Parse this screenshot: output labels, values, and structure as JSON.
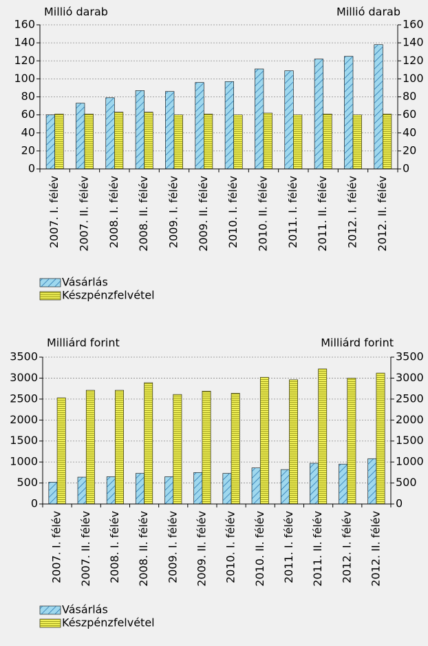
{
  "chart_data": [
    {
      "type": "bar",
      "ylabel": "Millió darab",
      "y2label": "Millió darab",
      "categories": [
        "2007. I. félév",
        "2007. II. félév",
        "2008. I. félév",
        "2008. II. félév",
        "2009. I. félév",
        "2009. II. félév",
        "2010. I. félév",
        "2010. II. félév",
        "2011. I. félév",
        "2011. II. félév",
        "2012. I. félév",
        "2012. II. félév"
      ],
      "series": [
        {
          "name": "Vásárlás",
          "color": "#9fd8ee",
          "values": [
            60,
            73,
            79,
            87,
            86,
            96,
            97,
            111,
            109,
            122,
            125,
            138
          ]
        },
        {
          "name": "Készpénzfelvétel",
          "color": "#eeee55",
          "values": [
            61,
            61,
            63,
            63,
            60,
            61,
            60,
            62,
            60,
            61,
            60,
            61
          ]
        }
      ],
      "ylim": [
        0,
        160
      ],
      "yticks": [
        0,
        20,
        40,
        60,
        80,
        100,
        120,
        140,
        160
      ],
      "y2lim": [
        0,
        160
      ],
      "y2ticks": [
        0,
        20,
        40,
        60,
        80,
        100,
        120,
        140,
        160
      ],
      "grid": true
    },
    {
      "type": "bar",
      "ylabel": "Milliárd forint",
      "y2label": "Milliárd forint",
      "categories": [
        "2007. I. félév",
        "2007. II. félév",
        "2008. I. félév",
        "2008. II. félév",
        "2009. I. félév",
        "2009. II. félév",
        "2010. I. félév",
        "2010. II. félév",
        "2011. I. félév",
        "2011. II. félév",
        "2012. I. félév",
        "2012. II. félév"
      ],
      "series": [
        {
          "name": "Vásárlás",
          "color": "#9fd8ee",
          "values": [
            520,
            640,
            650,
            730,
            650,
            750,
            730,
            860,
            820,
            970,
            950,
            1080
          ]
        },
        {
          "name": "Készpénzfelvétel",
          "color": "#eeee55",
          "values": [
            2530,
            2710,
            2710,
            2890,
            2610,
            2690,
            2640,
            3020,
            2960,
            3220,
            3000,
            3120
          ]
        }
      ],
      "ylim": [
        0,
        3500
      ],
      "yticks": [
        0,
        500,
        1000,
        1500,
        2000,
        2500,
        3000,
        3500
      ],
      "y2lim": [
        0,
        3500
      ],
      "y2ticks": [
        0,
        500,
        1000,
        1500,
        2000,
        2500,
        3000,
        3500
      ],
      "grid": true
    }
  ]
}
